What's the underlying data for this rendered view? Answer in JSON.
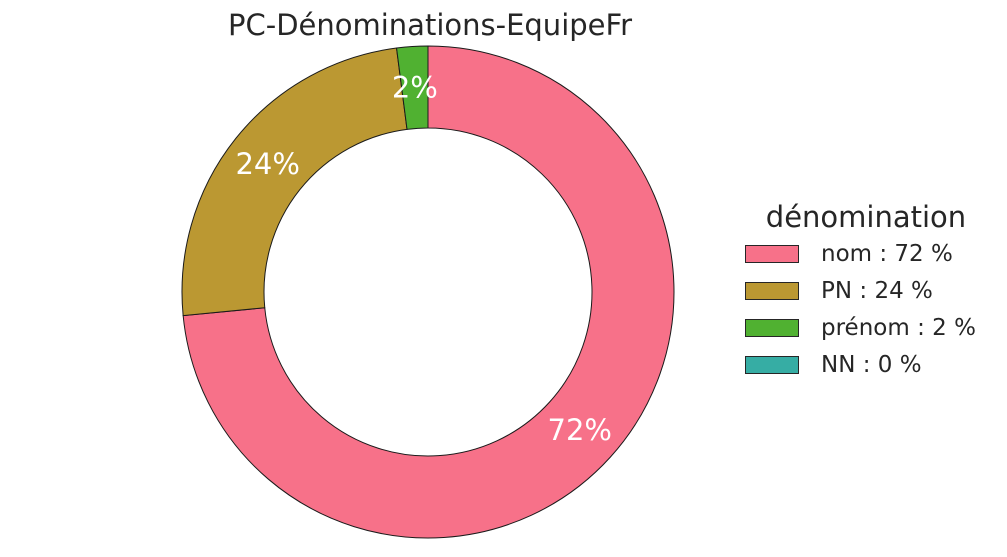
{
  "chart_data": {
    "type": "pie",
    "style": "donut",
    "title": "PC-Dénominations-EquipeFr",
    "legend_title": "dénomination",
    "legend_position": "right",
    "slices": [
      {
        "name": "nom",
        "value": 72,
        "label": "72%",
        "legend": "nom : 72 %",
        "color": "#f77189"
      },
      {
        "name": "PN",
        "value": 24,
        "label": "24%",
        "legend": "PN : 24 %",
        "color": "#bb9832"
      },
      {
        "name": "prénom",
        "value": 2,
        "label": "2%",
        "legend": "prénom : 2 %",
        "color": "#50b131"
      },
      {
        "name": "NN",
        "value": 0,
        "label": "",
        "legend": "NN : 0 %",
        "color": "#36ada4"
      }
    ],
    "start": "top",
    "direction": "clockwise"
  }
}
